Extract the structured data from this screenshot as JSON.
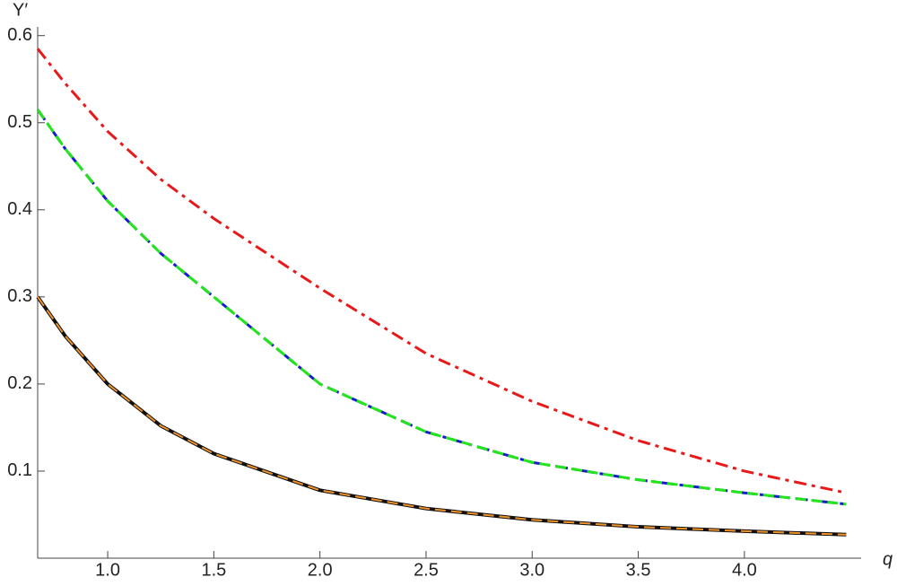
{
  "chart_data": {
    "type": "line",
    "xlabel": "q",
    "ylabel": "Y′",
    "x": [
      0.67,
      0.8,
      1.0,
      1.25,
      1.5,
      2.0,
      2.5,
      3.0,
      3.5,
      4.0,
      4.48
    ],
    "series": [
      {
        "color": "#e8191a",
        "dash": "dashdot",
        "width": 3,
        "values": [
          0.585,
          0.545,
          0.49,
          0.435,
          0.39,
          0.31,
          0.235,
          0.18,
          0.135,
          0.1,
          0.075
        ]
      },
      {
        "color": "#1a1ad0",
        "dash": "dashdot",
        "width": 3,
        "values": [
          0.515,
          0.47,
          0.41,
          0.35,
          0.3,
          0.2,
          0.145,
          0.11,
          0.09,
          0.075,
          0.062
        ]
      },
      {
        "color": "#22e61a",
        "dash": "dashed",
        "width": 3,
        "values": [
          0.515,
          0.47,
          0.41,
          0.35,
          0.3,
          0.2,
          0.145,
          0.11,
          0.09,
          0.075,
          0.062
        ]
      },
      {
        "color": "#111111",
        "dash": "solid",
        "width": 4,
        "values": [
          0.3,
          0.255,
          0.2,
          0.152,
          0.12,
          0.078,
          0.057,
          0.044,
          0.036,
          0.031,
          0.027
        ]
      },
      {
        "color": "#f0932a",
        "dash": "dashed",
        "width": 2,
        "values": [
          0.3,
          0.255,
          0.2,
          0.152,
          0.12,
          0.078,
          0.057,
          0.044,
          0.036,
          0.031,
          0.027
        ]
      }
    ],
    "xlim": [
      0.67,
      4.55
    ],
    "ylim": [
      0,
      0.61
    ],
    "xticks": [
      {
        "value": 1,
        "label": "1.0"
      },
      {
        "value": 1.5,
        "label": "1.5"
      },
      {
        "value": 2,
        "label": "2.0"
      },
      {
        "value": 2.5,
        "label": "2.5"
      },
      {
        "value": 3,
        "label": "3.0"
      },
      {
        "value": 3.5,
        "label": "3.5"
      },
      {
        "value": 4,
        "label": "4.0"
      }
    ],
    "yticks": [
      0.1,
      0.2,
      0.3,
      0.4,
      0.5,
      0.6
    ],
    "grid": false
  }
}
